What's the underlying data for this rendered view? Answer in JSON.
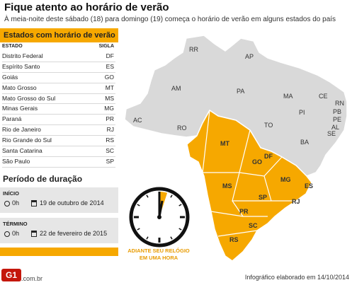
{
  "header": {
    "title": "Fique atento ao horário de verão",
    "subtitle": "À meia-noite deste sábado (18) para domingo (19) começa o horário de verão em alguns estados do país"
  },
  "table": {
    "title": "Estados com horário de verão",
    "col_state": "ESTADO",
    "col_sigla": "SIGLA",
    "rows": [
      {
        "estado": "Distrito Federal",
        "sigla": "DF"
      },
      {
        "estado": "Espírito Santo",
        "sigla": "ES"
      },
      {
        "estado": "Goiás",
        "sigla": "GO"
      },
      {
        "estado": "Mato Grosso",
        "sigla": "MT"
      },
      {
        "estado": "Mato Grosso do Sul",
        "sigla": "MS"
      },
      {
        "estado": "Minas Gerais",
        "sigla": "MG"
      },
      {
        "estado": "Paraná",
        "sigla": "PR"
      },
      {
        "estado": "Rio de Janeiro",
        "sigla": "RJ"
      },
      {
        "estado": "Rio Grande do Sul",
        "sigla": "RS"
      },
      {
        "estado": "Santa Catarina",
        "sigla": "SC"
      },
      {
        "estado": "São Paulo",
        "sigla": "SP"
      }
    ]
  },
  "period": {
    "title": "Período de duração",
    "start": {
      "label": "INÍCIO",
      "time": "0h",
      "date": "19 de outubro de 2014"
    },
    "end": {
      "label": "TÉRMINO",
      "time": "0h",
      "date": "22 de fevereiro de 2015"
    }
  },
  "clock": {
    "caption_line1": "ADIANTE SEU RELÓGIO",
    "caption_line2": "EM UMA HORA"
  },
  "map": {
    "state_labels": {
      "RR": "RR",
      "AP": "AP",
      "AM": "AM",
      "PA": "PA",
      "MA": "MA",
      "CE": "CE",
      "RN": "RN",
      "PB": "PB",
      "PE": "PE",
      "AL": "AL",
      "SE": "SE",
      "PI": "PI",
      "AC": "AC",
      "RO": "RO",
      "TO": "TO",
      "BA": "BA",
      "MT": "MT",
      "GO": "GO",
      "DF": "DF",
      "MG": "MG",
      "ES": "ES",
      "MS": "MS",
      "SP": "SP",
      "RJ": "RJ",
      "PR": "PR",
      "SC": "SC",
      "RS": "RS"
    },
    "colors": {
      "dst": "#f6a800",
      "other": "#d9d9d9",
      "border": "#ffffff"
    }
  },
  "footer": {
    "logo": "G1",
    "domain": ".com.br",
    "note": "Infográfico elaborado em 14/10/2014"
  }
}
